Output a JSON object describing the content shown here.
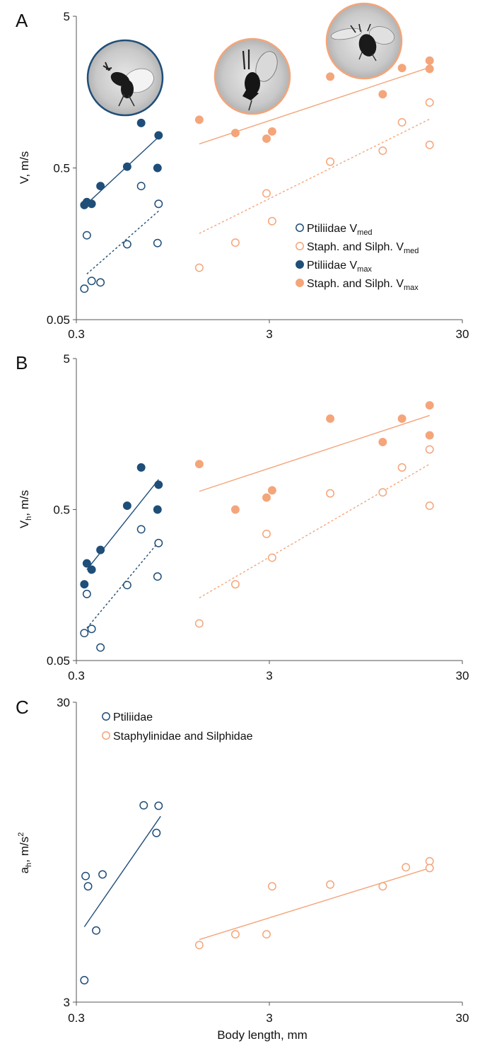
{
  "colors": {
    "ptiliidae": "#1f4e79",
    "staph_silph": "#f4a57a",
    "axis": "#555555"
  },
  "chart_data": [
    {
      "panel": "A",
      "type": "scatter",
      "xscale": "log",
      "yscale": "log",
      "xlim": [
        0.3,
        30
      ],
      "ylim": [
        0.05,
        5
      ],
      "xticks": [
        "0.3",
        "3",
        "30"
      ],
      "yticks": [
        "0.05",
        "0.5",
        "5"
      ],
      "ylabel": "V, m/s",
      "xlabel": "",
      "legend_position": "center-right",
      "legend": [
        {
          "text": "Ptiliidae V",
          "sub": "med",
          "series": "pt_med"
        },
        {
          "text": "Staph. and Silph. V",
          "sub": "med",
          "series": "ss_med"
        },
        {
          "text": "Ptiliidae V",
          "sub": "max",
          "series": "pt_max"
        },
        {
          "text": "Staph. and Silph. V",
          "sub": "max",
          "series": "ss_max"
        }
      ],
      "insets": [
        {
          "name": "ptiliidae-photo-inset",
          "edge": "ptiliidae"
        },
        {
          "name": "staph-photo-inset-1",
          "edge": "staph_silph"
        },
        {
          "name": "staph-photo-inset-2",
          "edge": "staph_silph"
        }
      ],
      "series": [
        {
          "key": "pt_med",
          "group": "ptiliidae",
          "fill": "open",
          "trend": "dashed",
          "x": [
            0.33,
            0.34,
            0.36,
            0.4,
            0.55,
            0.65,
            0.79,
            0.8
          ],
          "y": [
            0.08,
            0.18,
            0.09,
            0.088,
            0.157,
            0.38,
            0.16,
            0.29
          ],
          "fit_x": [
            0.34,
            0.8
          ],
          "fit_y": [
            0.1,
            0.26
          ]
        },
        {
          "key": "ss_med",
          "group": "staph_silph",
          "fill": "open",
          "trend": "dashed",
          "x": [
            1.3,
            2.0,
            2.9,
            3.1,
            6.2,
            11.6,
            14.6,
            20.3,
            20.3
          ],
          "y": [
            0.11,
            0.161,
            0.34,
            0.223,
            0.55,
            0.65,
            1.0,
            0.71,
            1.35
          ],
          "fit_x": [
            1.3,
            20.3
          ],
          "fit_y": [
            0.185,
            1.05
          ]
        },
        {
          "key": "pt_max",
          "group": "ptiliidae",
          "fill": "solid",
          "trend": "solid",
          "x": [
            0.33,
            0.34,
            0.36,
            0.4,
            0.55,
            0.65,
            0.79,
            0.8
          ],
          "y": [
            0.285,
            0.298,
            0.29,
            0.38,
            0.51,
            0.99,
            0.5,
            0.82
          ],
          "fit_x": [
            0.34,
            0.8
          ],
          "fit_y": [
            0.29,
            0.8
          ]
        },
        {
          "key": "ss_max",
          "group": "staph_silph",
          "fill": "solid",
          "trend": "solid",
          "x": [
            1.3,
            2.0,
            2.9,
            3.1,
            6.2,
            11.6,
            14.6,
            20.3,
            20.3
          ],
          "y": [
            1.04,
            0.85,
            0.78,
            0.87,
            2.0,
            1.53,
            2.28,
            2.25,
            2.55
          ],
          "fit_x": [
            1.3,
            20.3
          ],
          "fit_y": [
            0.72,
            2.3
          ]
        }
      ]
    },
    {
      "panel": "B",
      "type": "scatter",
      "xscale": "log",
      "yscale": "log",
      "xlim": [
        0.3,
        30
      ],
      "ylim": [
        0.05,
        5
      ],
      "xticks": [
        "0.3",
        "3",
        "30"
      ],
      "yticks": [
        "0.05",
        "0.5",
        "5"
      ],
      "ylabel": "V",
      "ylabel_sub": "h",
      "ylabel_rest": ", m/s",
      "xlabel": "",
      "series": [
        {
          "key": "pt_med",
          "group": "ptiliidae",
          "fill": "open",
          "trend": "dashed",
          "x": [
            0.33,
            0.34,
            0.36,
            0.4,
            0.55,
            0.65,
            0.79,
            0.8
          ],
          "y": [
            0.076,
            0.138,
            0.081,
            0.061,
            0.158,
            0.37,
            0.18,
            0.3
          ],
          "fit_x": [
            0.34,
            0.8
          ],
          "fit_y": [
            0.082,
            0.305
          ]
        },
        {
          "key": "ss_med",
          "group": "staph_silph",
          "fill": "open",
          "trend": "dashed",
          "x": [
            1.3,
            2.0,
            2.9,
            3.1,
            6.2,
            11.6,
            14.6,
            20.3,
            20.3
          ],
          "y": [
            0.088,
            0.16,
            0.345,
            0.24,
            0.64,
            0.65,
            0.95,
            0.53,
            1.25
          ],
          "fit_x": [
            1.3,
            20.3
          ],
          "fit_y": [
            0.13,
            1.0
          ]
        },
        {
          "key": "pt_max",
          "group": "ptiliidae",
          "fill": "solid",
          "trend": "solid",
          "x": [
            0.33,
            0.34,
            0.36,
            0.4,
            0.55,
            0.65,
            0.79,
            0.8
          ],
          "y": [
            0.16,
            0.22,
            0.2,
            0.27,
            0.53,
            0.95,
            0.5,
            0.73
          ],
          "fit_x": [
            0.34,
            0.8
          ],
          "fit_y": [
            0.2,
            0.79
          ]
        },
        {
          "key": "ss_max",
          "group": "staph_silph",
          "fill": "solid",
          "trend": "solid",
          "x": [
            1.3,
            2.0,
            2.9,
            3.1,
            6.2,
            11.6,
            14.6,
            20.3,
            20.3
          ],
          "y": [
            1.0,
            0.5,
            0.6,
            0.67,
            2.0,
            1.4,
            2.0,
            1.55,
            2.45
          ],
          "fit_x": [
            1.3,
            20.3
          ],
          "fit_y": [
            0.66,
            2.1
          ]
        }
      ]
    },
    {
      "panel": "C",
      "type": "scatter",
      "xscale": "log",
      "yscale": "log",
      "xlim": [
        0.3,
        30
      ],
      "ylim": [
        3,
        30
      ],
      "xticks": [
        "0.3",
        "3",
        "30"
      ],
      "yticks": [
        "3",
        "30"
      ],
      "ylabel": "a",
      "ylabel_sub": "h",
      "ylabel_rest": ", m/s",
      "ylabel_sup": "2",
      "xlabel": "Body length,  mm",
      "legend_position": "top-left",
      "legend": [
        {
          "text": "Ptiliidae",
          "series": "pt"
        },
        {
          "text": "Staphylinidae and Silphidae",
          "series": "ss"
        }
      ],
      "series": [
        {
          "key": "pt",
          "group": "ptiliidae",
          "fill": "open",
          "trend": "solid",
          "x": [
            0.33,
            0.335,
            0.345,
            0.38,
            0.41,
            0.67,
            0.78,
            0.8
          ],
          "y": [
            3.55,
            7.9,
            7.3,
            5.2,
            8.0,
            13.6,
            11.0,
            13.55
          ],
          "fit_x": [
            0.33,
            0.82
          ],
          "fit_y": [
            5.35,
            12.5
          ]
        },
        {
          "key": "ss",
          "group": "staph_silph",
          "fill": "open",
          "trend": "solid",
          "x": [
            1.3,
            2.0,
            2.9,
            3.1,
            6.2,
            11.6,
            15.3,
            20.3,
            20.3
          ],
          "y": [
            4.65,
            5.05,
            5.05,
            7.3,
            7.4,
            7.3,
            8.45,
            8.85,
            8.4
          ],
          "fit_x": [
            1.3,
            20.3
          ],
          "fit_y": [
            4.85,
            8.4
          ]
        }
      ]
    }
  ]
}
